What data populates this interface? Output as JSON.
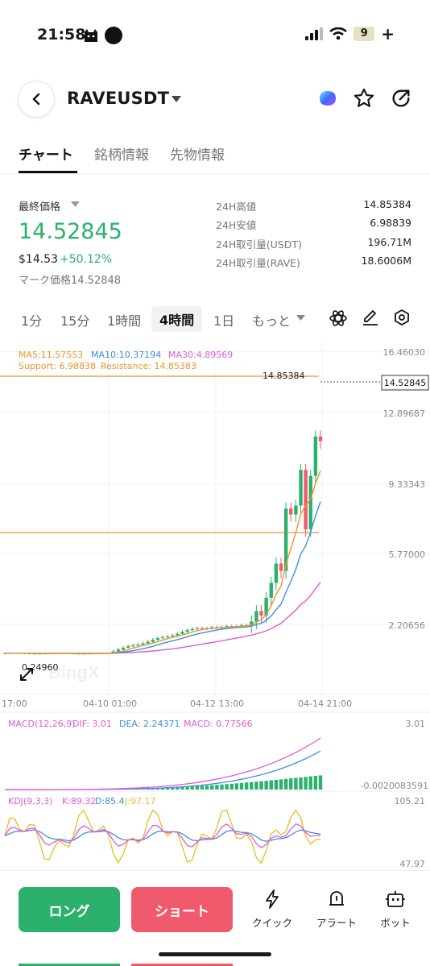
{
  "status_bar": {
    "time": "21:58",
    "battery": "9",
    "battery_plus": "+"
  },
  "header": {
    "pair": "RAVEUSDT"
  },
  "tabs": [
    {
      "label": "チャート",
      "active": true
    },
    {
      "label": "銘柄情報",
      "active": false
    },
    {
      "label": "先物情報",
      "active": false
    }
  ],
  "price": {
    "last_label": "最終価格",
    "last": "14.52845",
    "usd": "$14.53",
    "change": "+50.12%",
    "mark": "マーク価格14.52848"
  },
  "stats": [
    {
      "label": "24H高値",
      "value": "14.85384"
    },
    {
      "label": "24H安値",
      "value": "6.98839"
    },
    {
      "label": "24H取引量(USDT)",
      "value": "196.71M"
    },
    {
      "label": "24H取引量(RAVE)",
      "value": "18.6006M"
    }
  ],
  "timeframes": [
    {
      "label": "1分",
      "active": false
    },
    {
      "label": "15分",
      "active": false
    },
    {
      "label": "1時間",
      "active": false
    },
    {
      "label": "4時間",
      "active": true
    },
    {
      "label": "1日",
      "active": false
    },
    {
      "label": "もっと",
      "active": false
    }
  ],
  "chart": {
    "ma_legend": {
      "ma5": "MA5:11.57553",
      "ma10": "MA10:10.37194",
      "ma30": "MA30:4.89569"
    },
    "sr_legend": {
      "support": "Support: 6.98838",
      "resistance": "Resistance: 14.85383"
    },
    "y_ticks": [
      "16.46030",
      "12.89687",
      "9.33343",
      "5.77000",
      "2.20656"
    ],
    "x_ticks": [
      "17:00",
      "04-10 01:00",
      "04-12 13:00",
      "04-14 21:00"
    ],
    "high_marker": "14.85384",
    "low_marker": "0.24960",
    "current_price": "14.52845",
    "watermark": "BingX",
    "colors": {
      "up": "#2bb16c",
      "down": "#ef5a6c",
      "ma5": "#f0922b",
      "ma10": "#3d8fe0",
      "ma30": "#e05ad8"
    }
  },
  "macd": {
    "label": "MACD(12,26,9)",
    "dif": "DIF: 3.01",
    "dea": "DEA: 2.24371",
    "macd": "MACD: 0.77566",
    "y_top": "3.01",
    "y_bottom": "-0.0020083591"
  },
  "kdj": {
    "label": "KDJ(9,3,3)",
    "k": "K:89.32",
    "d": "D:85.4",
    "j": "J:97.17",
    "y_top": "105.21",
    "y_bottom": "47.97"
  },
  "bottom_bar": {
    "long": "ロング",
    "short": "ショート",
    "quick": "クイック",
    "alert": "アラート",
    "bot": "ボット"
  }
}
